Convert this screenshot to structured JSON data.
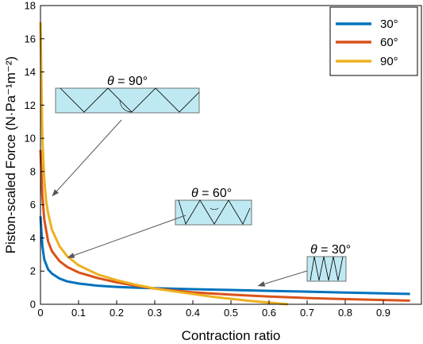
{
  "chart_data": {
    "type": "line",
    "xlabel": "Contraction ratio",
    "ylabel": "Piston-scaled Force (N·Pa⁻¹m⁻²)",
    "xlim": [
      0,
      1
    ],
    "ylim": [
      0,
      18
    ],
    "x_ticks": [
      "0",
      "0.1",
      "0.2",
      "0.3",
      "0.4",
      "0.5",
      "0.6",
      "0.7",
      "0.8",
      "0.9"
    ],
    "y_ticks": [
      "0",
      "2",
      "4",
      "6",
      "8",
      "10",
      "12",
      "14",
      "16",
      "18"
    ],
    "grid": false,
    "legend_position": "top-right",
    "series": [
      {
        "name": "30°",
        "color": "#0072BD",
        "x": [
          0.0,
          0.005,
          0.01,
          0.02,
          0.03,
          0.05,
          0.07,
          0.1,
          0.15,
          0.2,
          0.25,
          0.3,
          0.35,
          0.4,
          0.5,
          0.6,
          0.7,
          0.8,
          0.9,
          0.97
        ],
        "y": [
          5.3,
          3.5,
          2.7,
          2.1,
          1.85,
          1.55,
          1.38,
          1.25,
          1.12,
          1.05,
          1.0,
          0.97,
          0.94,
          0.91,
          0.86,
          0.81,
          0.76,
          0.71,
          0.66,
          0.62
        ]
      },
      {
        "name": "60°",
        "color": "#D95319",
        "x": [
          0.0,
          0.005,
          0.01,
          0.02,
          0.03,
          0.05,
          0.07,
          0.1,
          0.15,
          0.2,
          0.25,
          0.3,
          0.4,
          0.5,
          0.6,
          0.7,
          0.8,
          0.9,
          0.97
        ],
        "y": [
          9.3,
          6.5,
          5.1,
          3.8,
          3.2,
          2.6,
          2.25,
          1.92,
          1.58,
          1.32,
          1.12,
          0.95,
          0.72,
          0.58,
          0.47,
          0.38,
          0.31,
          0.26,
          0.22
        ]
      },
      {
        "name": "90°",
        "color": "#EDB120",
        "x": [
          0.0,
          0.005,
          0.01,
          0.015,
          0.02,
          0.03,
          0.05,
          0.07,
          0.1,
          0.15,
          0.2,
          0.25,
          0.3,
          0.35,
          0.4,
          0.45,
          0.5,
          0.55,
          0.6,
          0.63,
          0.65
        ],
        "y": [
          17.0,
          10.0,
          7.5,
          6.2,
          5.5,
          4.5,
          3.5,
          2.9,
          2.35,
          1.8,
          1.45,
          1.18,
          0.95,
          0.78,
          0.62,
          0.46,
          0.33,
          0.2,
          0.1,
          0.04,
          0.0
        ]
      }
    ],
    "annotations": [
      {
        "theta_symbol": "θ",
        "value": " = 90°",
        "arrow_to": [
          0.03,
          6.5
        ]
      },
      {
        "theta_symbol": "θ",
        "value": " = 60°",
        "arrow_to": [
          0.07,
          2.8
        ]
      },
      {
        "theta_symbol": "θ",
        "value": " = 30°",
        "arrow_to": [
          0.57,
          1.1
        ]
      }
    ]
  }
}
